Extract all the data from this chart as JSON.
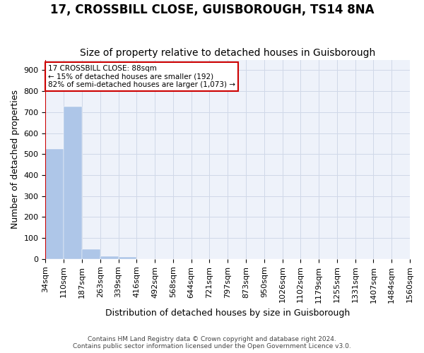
{
  "title": "17, CROSSBILL CLOSE, GUISBOROUGH, TS14 8NA",
  "subtitle": "Size of property relative to detached houses in Guisborough",
  "xlabel": "Distribution of detached houses by size in Guisborough",
  "ylabel": "Number of detached properties",
  "footnote": "Contains HM Land Registry data © Crown copyright and database right 2024.\nContains public sector information licensed under the Open Government Licence v3.0.",
  "bin_labels": [
    "34sqm",
    "110sqm",
    "187sqm",
    "263sqm",
    "339sqm",
    "416sqm",
    "492sqm",
    "568sqm",
    "644sqm",
    "721sqm",
    "797sqm",
    "873sqm",
    "950sqm",
    "1026sqm",
    "1102sqm",
    "1179sqm",
    "1255sqm",
    "1331sqm",
    "1407sqm",
    "1484sqm",
    "1560sqm"
  ],
  "bar_heights": [
    525,
    725,
    48,
    12,
    10,
    0,
    0,
    0,
    0,
    0,
    0,
    0,
    0,
    0,
    0,
    0,
    0,
    0,
    0,
    0
  ],
  "bar_color": "#aec6e8",
  "bar_edge_color": "#aec6e8",
  "grid_color": "#d0d8e8",
  "background_color": "#eef2fa",
  "property_sqm": 88,
  "property_bin_index": 0,
  "red_line_color": "#cc0000",
  "annotation_text": "17 CROSSBILL CLOSE: 88sqm\n← 15% of detached houses are smaller (192)\n82% of semi-detached houses are larger (1,073) →",
  "annotation_box_color": "#cc0000",
  "ylim": [
    0,
    950
  ],
  "yticks": [
    0,
    100,
    200,
    300,
    400,
    500,
    600,
    700,
    800,
    900
  ],
  "title_fontsize": 12,
  "subtitle_fontsize": 10,
  "axis_label_fontsize": 9,
  "tick_fontsize": 8
}
